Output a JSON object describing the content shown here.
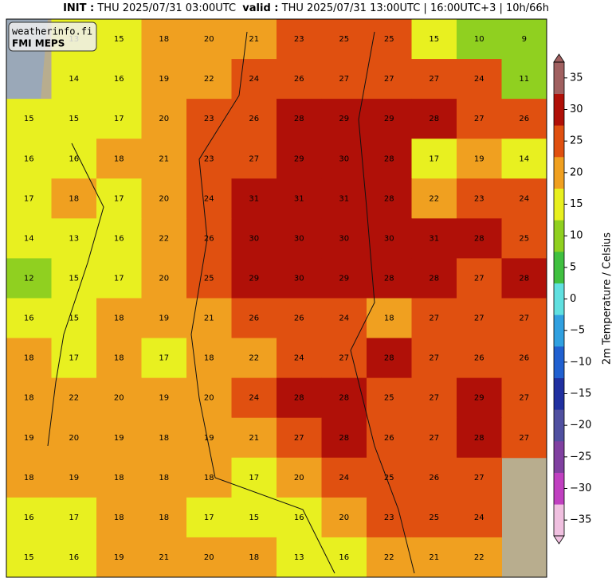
{
  "header": {
    "init_label": "INIT :",
    "init_value": "THU 2025/07/31 03:00UTC",
    "valid_label": "valid :",
    "valid_value": "THU 2025/07/31 13:00UTC | 16:00UTC+3 | 10h/66h"
  },
  "watermark": {
    "site": "weatherinfo.fi",
    "model": "FMI MEPS"
  },
  "map": {
    "grid": [
      [
        null,
        13,
        15,
        18,
        20,
        21,
        23,
        25,
        25,
        15,
        10,
        9
      ],
      [
        null,
        14,
        16,
        19,
        22,
        24,
        26,
        27,
        27,
        27,
        24,
        11
      ],
      [
        15,
        15,
        17,
        20,
        23,
        26,
        28,
        29,
        29,
        28,
        27,
        26
      ],
      [
        16,
        16,
        18,
        21,
        23,
        27,
        29,
        30,
        28,
        17,
        19,
        14
      ],
      [
        17,
        18,
        17,
        20,
        24,
        31,
        31,
        31,
        28,
        22,
        23,
        24
      ],
      [
        14,
        13,
        16,
        22,
        26,
        30,
        30,
        30,
        30,
        31,
        28,
        25
      ],
      [
        12,
        15,
        17,
        20,
        25,
        29,
        30,
        29,
        28,
        28,
        27,
        28
      ],
      [
        16,
        15,
        18,
        19,
        21,
        26,
        26,
        24,
        18,
        27,
        27,
        27
      ],
      [
        18,
        17,
        18,
        17,
        18,
        22,
        24,
        27,
        28,
        27,
        26,
        26
      ],
      [
        18,
        22,
        20,
        19,
        20,
        24,
        28,
        28,
        25,
        27,
        29,
        27
      ],
      [
        19,
        20,
        19,
        18,
        19,
        21,
        27,
        28,
        26,
        27,
        28,
        27
      ],
      [
        18,
        19,
        18,
        18,
        18,
        17,
        20,
        24,
        25,
        26,
        27,
        null
      ],
      [
        16,
        17,
        18,
        18,
        17,
        15,
        16,
        20,
        23,
        25,
        24,
        null
      ],
      [
        15,
        16,
        19,
        21,
        20,
        18,
        13,
        16,
        22,
        21,
        22,
        null
      ]
    ]
  },
  "colorbar": {
    "label": "2m Temperature / Celsius",
    "clim": [
      -37.5,
      37.5
    ],
    "colormap": [
      "#f0c0e0",
      "#c040c0",
      "#8040a0",
      "#5050a0",
      "#2030a0",
      "#2060d0",
      "#30a0e0",
      "#60e0e0",
      "#40c040",
      "#90d020",
      "#e8f020",
      "#f0a020",
      "#e05010",
      "#b01008",
      "#a06060"
    ],
    "ticks": [
      35,
      30,
      25,
      20,
      15,
      10,
      5,
      0,
      {
        "value": -5,
        "label": "−5"
      },
      {
        "value": -10,
        "label": "−10"
      },
      {
        "value": -15,
        "label": "−15"
      },
      {
        "value": -20,
        "label": "−20"
      },
      {
        "value": -25,
        "label": "−25"
      },
      {
        "value": -30,
        "label": "−30"
      },
      {
        "value": -35,
        "label": "−35"
      }
    ]
  }
}
